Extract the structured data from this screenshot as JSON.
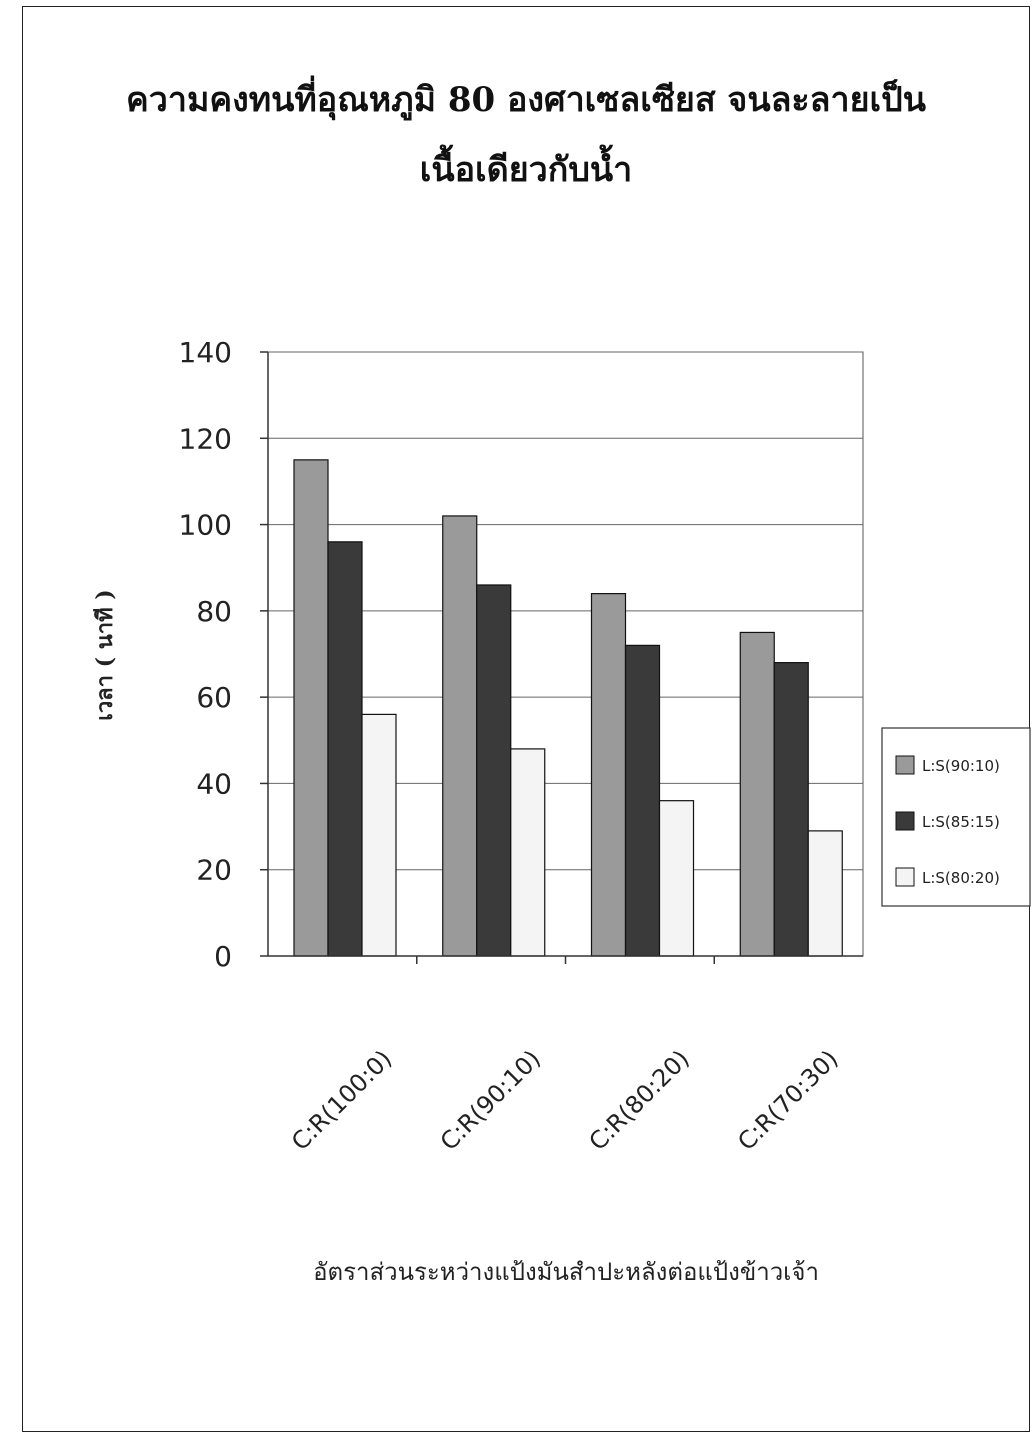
{
  "chart_data": {
    "type": "bar",
    "title": "ความคงทนที่อุณหภูมิ 80 องศาเซลเซียส จนละลายเป็น",
    "subtitle": "เนื้อเดียวกับน้ำ",
    "xlabel": "อัตราส่วนระหว่างแป้งมันสำปะหลังต่อแป้งข้าวเจ้า",
    "ylabel": "เวลา ( นาที )",
    "categories": [
      "C:R(100:0)",
      "C:R(90:10)",
      "C:R(80:20)",
      "C:R(70:30)"
    ],
    "series": [
      {
        "name": "L:S(90:10)",
        "values": [
          115,
          102,
          84,
          75
        ],
        "color": "#9a9a9a"
      },
      {
        "name": "L:S(85:15)",
        "values": [
          96,
          86,
          72,
          68
        ],
        "color": "#3a3a3a"
      },
      {
        "name": "L:S(80:20)",
        "values": [
          56,
          48,
          36,
          29
        ],
        "color": "#f4f4f4"
      }
    ],
    "ylim": [
      0,
      140
    ],
    "yticks": [
      0,
      20,
      40,
      60,
      80,
      100,
      120,
      140
    ],
    "grid": true,
    "legend_position": "right"
  }
}
